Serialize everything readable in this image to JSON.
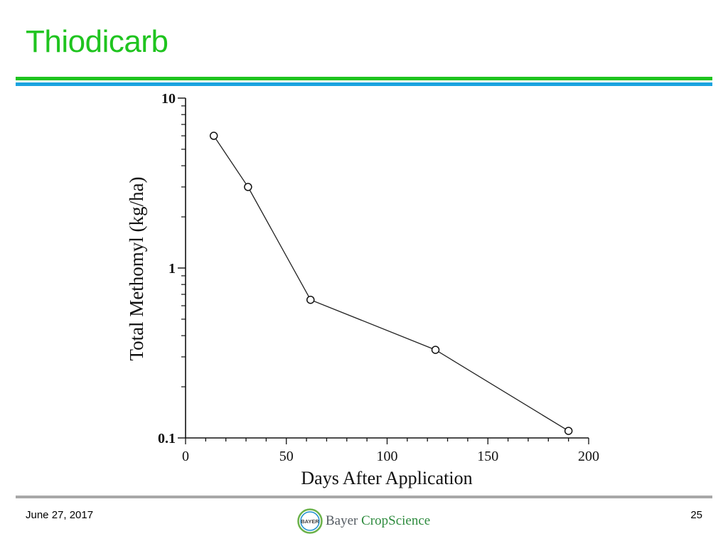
{
  "slide": {
    "title": "Thiodicarb",
    "date": "June 27, 2017",
    "page_number": "25",
    "brand_word1": "Bayer",
    "brand_word2": "CropScience",
    "logo_letters": "BAYER",
    "colors": {
      "title": "#1fc41f",
      "rule_green": "#1fc41f",
      "rule_blue": "#1aa3e0",
      "rule_gray": "#a8a8a8",
      "brand_green": "#2e8b3e"
    },
    "logo_icon": "bayer-cross-logo"
  },
  "chart_data": {
    "type": "line",
    "title": "",
    "xlabel": "Days After Application",
    "ylabel": "Total Methomyl (kg/ha)",
    "x_scale": "linear",
    "y_scale": "log",
    "xlim": [
      0,
      200
    ],
    "ylim": [
      0.1,
      10
    ],
    "x_ticks": [
      0,
      50,
      100,
      150,
      200
    ],
    "x_tick_labels": [
      "0",
      "50",
      "100",
      "150",
      "200"
    ],
    "y_ticks": [
      0.1,
      1,
      10
    ],
    "y_tick_labels": [
      "0.1",
      "1",
      "10"
    ],
    "grid": false,
    "markers": "open-circle",
    "series": [
      {
        "x": [
          14,
          31,
          62,
          124,
          190
        ],
        "y": [
          6.0,
          3.0,
          0.65,
          0.33,
          0.11
        ]
      }
    ]
  }
}
